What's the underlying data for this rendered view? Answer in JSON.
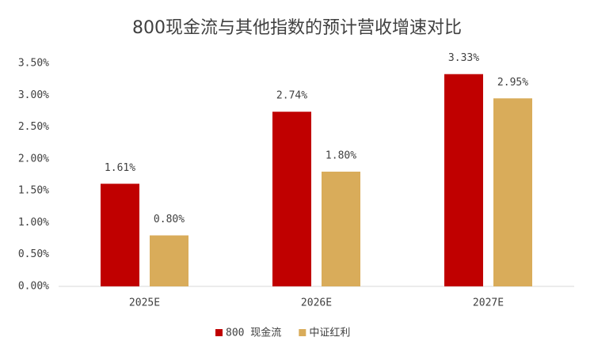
{
  "chart_data": {
    "type": "bar",
    "title": "800现金流与其他指数的预计营收增速对比",
    "categories": [
      "2025E",
      "2026E",
      "2027E"
    ],
    "series": [
      {
        "name": "800 现金流",
        "color": "#c00000",
        "values": [
          1.61,
          2.74,
          3.33
        ],
        "value_labels": [
          "1.61%",
          "2.74%",
          "3.33%"
        ]
      },
      {
        "name": "中证红利",
        "color": "#d9ac5a",
        "values": [
          0.8,
          1.8,
          2.95
        ],
        "value_labels": [
          "0.80%",
          "1.80%",
          "2.95%"
        ]
      }
    ],
    "ylim": [
      0,
      3.5
    ],
    "yticks": [
      {
        "value": 0,
        "label": "0.00%"
      },
      {
        "value": 0.5,
        "label": "0.50%"
      },
      {
        "value": 1,
        "label": "1.00%"
      },
      {
        "value": 1.5,
        "label": "1.50%"
      },
      {
        "value": 2,
        "label": "2.00%"
      },
      {
        "value": 2.5,
        "label": "2.50%"
      },
      {
        "value": 3,
        "label": "3.00%"
      },
      {
        "value": 3.5,
        "label": "3.50%"
      }
    ],
    "grid": false,
    "legend": "bottom"
  }
}
